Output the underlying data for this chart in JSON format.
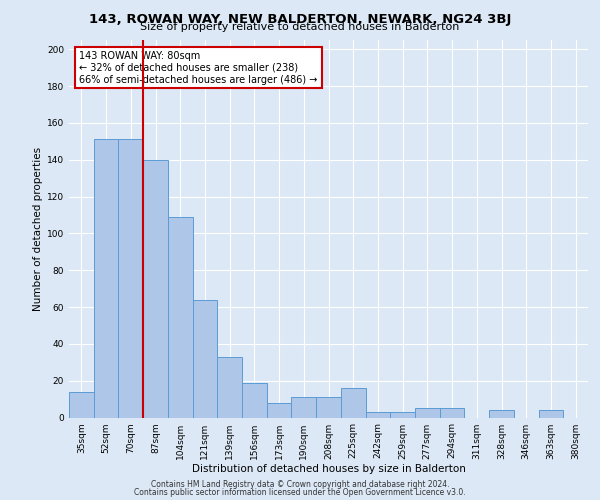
{
  "title1": "143, ROWAN WAY, NEW BALDERTON, NEWARK, NG24 3BJ",
  "title2": "Size of property relative to detached houses in Balderton",
  "xlabel": "Distribution of detached houses by size in Balderton",
  "ylabel": "Number of detached properties",
  "categories": [
    "35sqm",
    "52sqm",
    "70sqm",
    "87sqm",
    "104sqm",
    "121sqm",
    "139sqm",
    "156sqm",
    "173sqm",
    "190sqm",
    "208sqm",
    "225sqm",
    "242sqm",
    "259sqm",
    "277sqm",
    "294sqm",
    "311sqm",
    "328sqm",
    "346sqm",
    "363sqm",
    "380sqm"
  ],
  "values": [
    14,
    151,
    151,
    140,
    109,
    64,
    33,
    19,
    8,
    11,
    11,
    16,
    3,
    3,
    5,
    5,
    0,
    4,
    0,
    4,
    0
  ],
  "bar_color": "#aec6e8",
  "bar_edge_color": "#5b9bd5",
  "vline_x_index": 2,
  "vline_color": "#cc0000",
  "annotation_text": "143 ROWAN WAY: 80sqm\n← 32% of detached houses are smaller (238)\n66% of semi-detached houses are larger (486) →",
  "annotation_box_color": "#ffffff",
  "annotation_box_edge": "#cc0000",
  "ylim": [
    0,
    205
  ],
  "yticks": [
    0,
    20,
    40,
    60,
    80,
    100,
    120,
    140,
    160,
    180,
    200
  ],
  "footer1": "Contains HM Land Registry data © Crown copyright and database right 2024.",
  "footer2": "Contains public sector information licensed under the Open Government Licence v3.0.",
  "bg_color": "#dce8f5",
  "plot_bg_color": "#dce8f5",
  "title1_fontsize": 9.5,
  "title2_fontsize": 8.0,
  "xlabel_fontsize": 7.5,
  "ylabel_fontsize": 7.5,
  "tick_fontsize": 6.5,
  "footer_fontsize": 5.5,
  "ann_fontsize": 7.0
}
